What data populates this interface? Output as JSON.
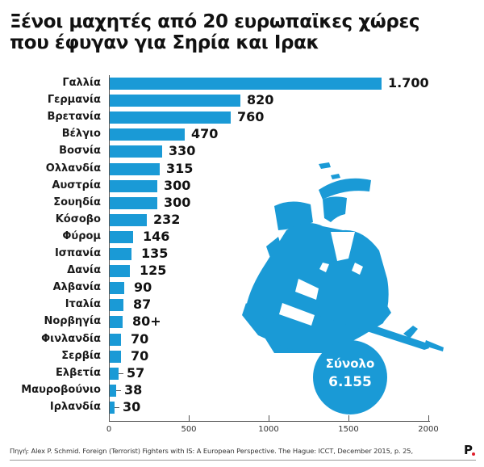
{
  "header": {
    "title_line1": "Ξένοι μαχητές από 20 ευρωπαϊκες χώρες",
    "title_line2": "που έφυγαν για Σηρία και Ιρακ"
  },
  "total": {
    "label": "Σύνολο",
    "value": "6.155"
  },
  "footer": {
    "source": "Πηγή: Alex P. Schmid. Foreign (Terrorist) Fighters with IS: A European Perspective. The Hague: ICCT, December 2015, p. 25,",
    "logo": "P"
  },
  "colors": {
    "bar": "#1a9ad6",
    "logo_dot": "#e0202d"
  },
  "axis": {
    "ticks": [
      "0",
      "500",
      "1000",
      "1500",
      "2000"
    ]
  },
  "chart_data": {
    "type": "bar",
    "orientation": "horizontal",
    "title": "Ξένοι μαχητές από 20 ευρωπαϊκες χώρες που έφυγαν για Σηρία και Ιρακ",
    "xlabel": "",
    "ylabel": "",
    "xlim": [
      0,
      2000
    ],
    "xticks": [
      0,
      500,
      1000,
      1500,
      2000
    ],
    "grid": false,
    "legend": null,
    "categories": [
      "Γαλλία",
      "Γερμανία",
      "Βρετανία",
      "Βέλγιο",
      "Βοσνία",
      "Ολλανδία",
      "Αυστρία",
      "Σουηδία",
      "Κόσοβο",
      "Φύρομ",
      "Ισπανία",
      "Δανία",
      "Αλβανία",
      "Ιταλία",
      "Νορβηγία",
      "Φινλανδία",
      "Σερβία",
      "Ελβετία",
      "Μαυροβούνιο",
      "Ιρλανδία"
    ],
    "values": [
      1700,
      820,
      760,
      470,
      330,
      315,
      300,
      300,
      232,
      146,
      135,
      125,
      90,
      87,
      80,
      70,
      70,
      57,
      38,
      30
    ],
    "value_labels": [
      "1.700",
      "820",
      "760",
      "470",
      "330",
      "315",
      "300",
      "300",
      "232",
      "146",
      "135",
      "125",
      "90",
      "87",
      "80+",
      "70",
      "70",
      "57",
      "38",
      "30"
    ],
    "annotations": [
      "Σύνολο 6.155"
    ],
    "source": "Πηγή: Alex P. Schmid. Foreign (Terrorist) Fighters with IS: A European Perspective. The Hague: ICCT, December 2015, p. 25,"
  }
}
